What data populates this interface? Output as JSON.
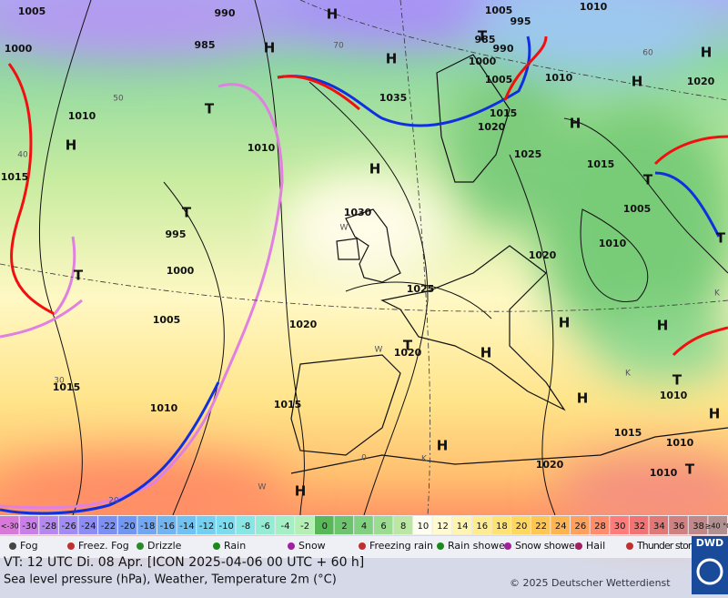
{
  "map": {
    "pressure_labels": [
      "1005",
      "1000",
      "990",
      "985",
      "1010",
      "1015",
      "995",
      "1000",
      "1005",
      "1010",
      "1030",
      "1035",
      "1025",
      "1020",
      "1020",
      "1015",
      "1010",
      "1015",
      "1020",
      "1025",
      "1020",
      "1015",
      "1005",
      "1000",
      "995",
      "990",
      "985",
      "1005",
      "1010",
      "1010",
      "1020",
      "1015",
      "1005",
      "1010",
      "1015",
      "1010",
      "1010",
      "1010",
      "1020"
    ],
    "pressure_centers": [
      "H",
      "H",
      "H",
      "H",
      "H",
      "H",
      "H",
      "H",
      "H",
      "H",
      "H",
      "H",
      "H",
      "H",
      "H",
      "T",
      "T",
      "T",
      "T",
      "T",
      "T",
      "T",
      "T",
      "T"
    ],
    "minor_labels": [
      "50",
      "40",
      "30",
      "20",
      "70",
      "0",
      "60",
      "W",
      "W",
      "W",
      "K",
      "K",
      "K"
    ]
  },
  "temperature_scale": {
    "labels": [
      "<-30",
      "-30",
      "-28",
      "-26",
      "-24",
      "-22",
      "-20",
      "-18",
      "-16",
      "-14",
      "-12",
      "-10",
      "-8",
      "-6",
      "-4",
      "-2",
      "0",
      "2",
      "4",
      "6",
      "8",
      "10",
      "12",
      "14",
      "16",
      "18",
      "20",
      "22",
      "24",
      "26",
      "28",
      "30",
      "32",
      "34",
      "36",
      "38",
      "≥40 °C"
    ],
    "colors": [
      "#d878d8",
      "#c880e8",
      "#b488ee",
      "#a08cf2",
      "#8c8cf4",
      "#7c90f4",
      "#7098f2",
      "#70a6f2",
      "#70b4f2",
      "#70c2f2",
      "#74d0f0",
      "#7cdcee",
      "#88e6e4",
      "#94ecd4",
      "#a4f0c4",
      "#b4f0b4",
      "#58b858",
      "#6cc46c",
      "#80d080",
      "#9cdc90",
      "#bce6a4",
      "#fdfdf0",
      "#fffad0",
      "#fff4b0",
      "#ffec90",
      "#ffe274",
      "#ffd660",
      "#ffc654",
      "#ffb452",
      "#ffa05c",
      "#ff8c6a",
      "#ff7c7a",
      "#f07474",
      "#e07878",
      "#d08080",
      "#c08888",
      "#b09090"
    ]
  },
  "legend": [
    "Fog",
    "Freez. Fog",
    "Drizzle",
    "Rain",
    "Snow",
    "Freezing rain",
    "Rain shower",
    "Snow shower",
    "Hail",
    "Thunder storm"
  ],
  "footer": {
    "valid_time": "VT: 12 UTC Di.  08 Apr. [ICON 2025-04-06  00 UTC + 60 h]",
    "description": "Sea level pressure (hPa), Weather, Temperature 2m (°C)",
    "copyright": "© 2025 Deutscher Wetterdienst",
    "logo": "DWD"
  }
}
